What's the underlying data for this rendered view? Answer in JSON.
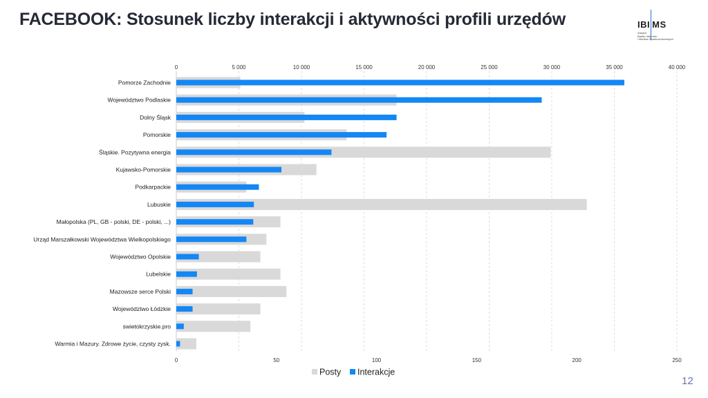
{
  "title": "FACEBOOK: Stosunek liczby interakcji i aktywności profili urzędów",
  "logo": {
    "name": "IBIMS",
    "name_part1": "IBI",
    "name_part2": "MS",
    "subtitle_lines": [
      "Instytut",
      "Badań Internetu",
      "i Mediów Społecznościowych"
    ]
  },
  "page_number": "12",
  "colors": {
    "posty": "#d9d9d9",
    "interakcje": "#1487f5"
  },
  "chart_data": {
    "type": "bar",
    "orientation": "horizontal",
    "title": "FACEBOOK: Stosunek liczby interakcji i aktywności profili urzędów",
    "categories": [
      "Pomorze Zachodnie",
      "Województwo Podlaskie",
      "Dolny Śląsk",
      "Pomorskie",
      "Śląskie. Pozytywna energia",
      "Kujawsko-Pomorskie",
      "Podkarpackie",
      "Lubuskie",
      "Małopolska (PL, GB - polski, DE - polski, ...)",
      "Urząd Marszałkowski Województwa Wielkopolskiego",
      "Województwo Opolskie",
      "Lubelskie",
      "Mazowsze serce Polski",
      "Województwo Łódzkie",
      "swietokrzyskie.pro",
      "Warmia i Mazury. Zdrowe życie, czysty zysk."
    ],
    "series": [
      {
        "name": "Posty",
        "axis": "bottom",
        "values": [
          32,
          110,
          64,
          85,
          187,
          70,
          35,
          205,
          52,
          45,
          42,
          52,
          55,
          42,
          37,
          10
        ]
      },
      {
        "name": "Interakcje",
        "axis": "top",
        "values": [
          35800,
          29200,
          17600,
          16800,
          12400,
          8400,
          6600,
          6200,
          6150,
          5600,
          1800,
          1650,
          1300,
          1300,
          600,
          300
        ]
      }
    ],
    "top_axis": {
      "range": [
        0,
        40000
      ],
      "ticks": [
        0,
        5000,
        10000,
        15000,
        20000,
        25000,
        30000,
        35000,
        40000
      ],
      "tick_labels": [
        "0",
        "5 000",
        "10 000",
        "15 000",
        "20 000",
        "25 000",
        "30 000",
        "35 000",
        "40 000"
      ]
    },
    "bottom_axis": {
      "range": [
        0,
        250
      ],
      "ticks": [
        0,
        50,
        100,
        150,
        200,
        250
      ],
      "tick_labels": [
        "0",
        "50",
        "100",
        "150",
        "200",
        "250"
      ]
    },
    "grid": "vertical dashed",
    "legend": {
      "placement": "bottom-center",
      "entries": [
        "Posty",
        "Interakcje"
      ]
    }
  }
}
